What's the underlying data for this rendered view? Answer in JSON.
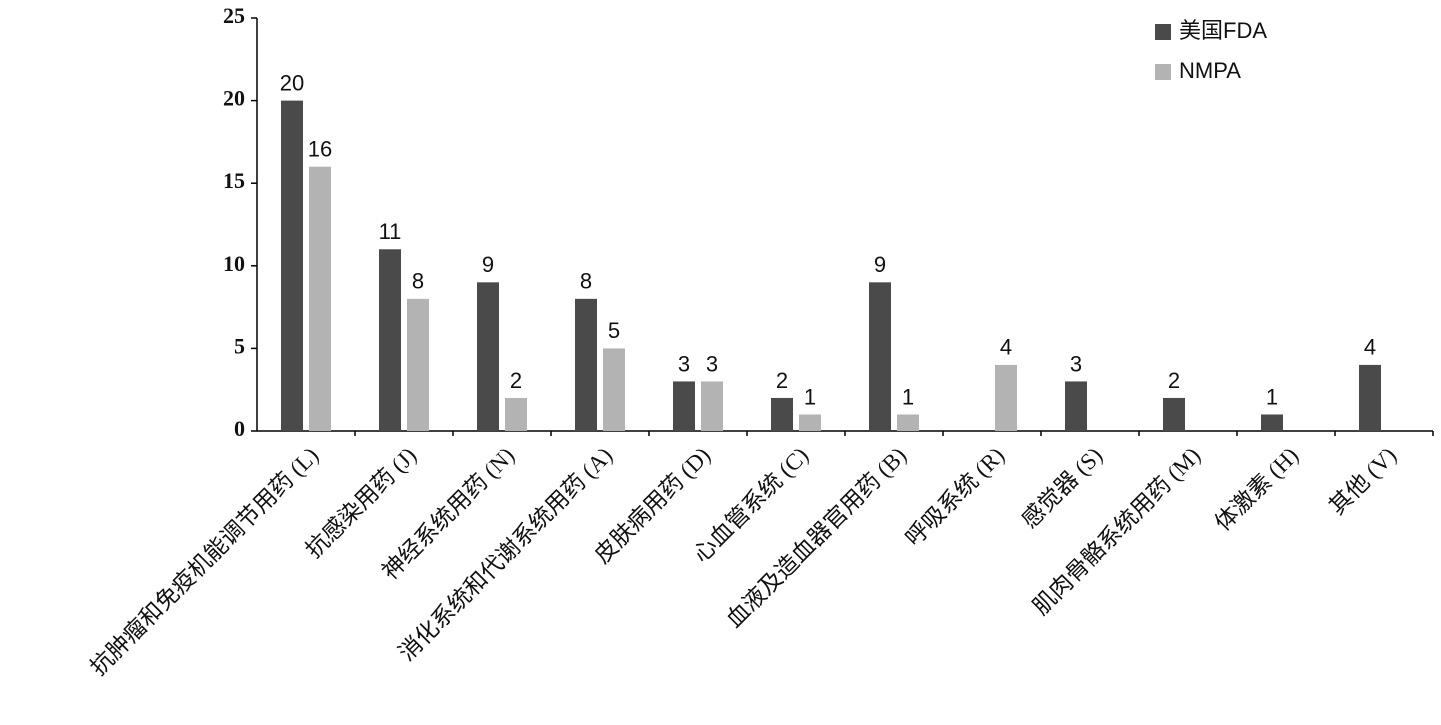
{
  "chart_data": {
    "type": "bar",
    "categories": [
      "抗肿瘤和免疫机能调节用药 (L)",
      "抗感染用药 (J)",
      "神经系统用药 (N)",
      "消化系统和代谢系统用药 (A)",
      "皮肤病用药 (D)",
      "心血管系统 (C)",
      "血液及造血器官用药 (B)",
      "呼吸系统 (R)",
      "感觉器 (S)",
      "肌肉骨骼系统用药 (M)",
      "体激素 (H)",
      "其他 (V)"
    ],
    "series": [
      {
        "name": "美国FDA",
        "color": "#4a4a4a",
        "values": [
          20,
          11,
          9,
          8,
          3,
          2,
          9,
          null,
          3,
          2,
          1,
          4
        ]
      },
      {
        "name": "NMPA",
        "color": "#b3b3b3",
        "values": [
          16,
          8,
          2,
          5,
          3,
          1,
          1,
          4,
          null,
          null,
          null,
          null
        ]
      }
    ],
    "ylim": [
      0,
      25
    ],
    "yticks": [
      0,
      5,
      10,
      15,
      20,
      25
    ],
    "grid": false,
    "legend": "upper right"
  }
}
